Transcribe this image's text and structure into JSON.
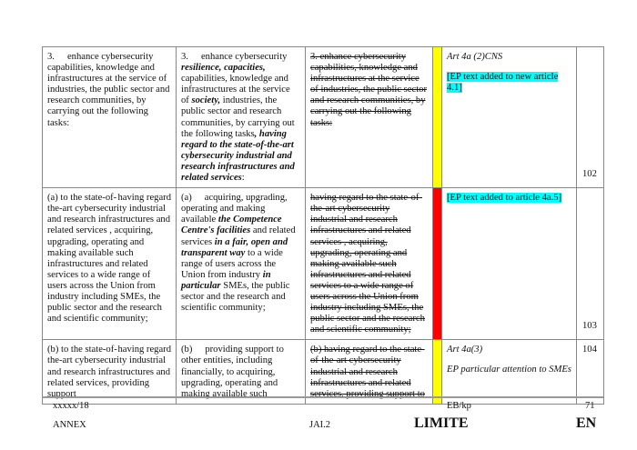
{
  "rows": [
    {
      "col1": [
        {
          "t": "3.",
          "s": ""
        },
        {
          "t": "SP",
          "s": "sp"
        },
        {
          "t": "enhance cybersecurity capabilities, knowledge and infrastructures at the service of industries, the public sector and research communities, by carrying out the following tasks:",
          "s": ""
        }
      ],
      "col2": [
        {
          "t": "3.",
          "s": ""
        },
        {
          "t": "SP",
          "s": "sp"
        },
        {
          "t": "enhance cybersecurity ",
          "s": ""
        },
        {
          "t": "resilience, capacities,",
          "s": "bi"
        },
        {
          "t": " capabilities, knowledge and infrastructures at the service of ",
          "s": ""
        },
        {
          "t": "society,",
          "s": "bi"
        },
        {
          "t": " industries, the public sector and research communities, by carrying out the following tasks",
          "s": ""
        },
        {
          "t": ", having regard to the state-of-the-art cybersecurity industrial and research infrastructures and related services",
          "s": "bi"
        },
        {
          "t": ":",
          "s": ""
        }
      ],
      "col3": [
        {
          "t": "3.      enhance cybersecurity capabilities, knowledge and infrastructures at the service of industries, the public sector and research communities, by carrying out the following tasks:",
          "s": "del"
        }
      ],
      "bar_color": "#ffff00",
      "note_ref": "Art 4a (2)CNS",
      "note_text": "[EP text added to new article 4.1]",
      "number": "102"
    },
    {
      "col1": [
        {
          "t": "(a)",
          "s": ""
        },
        {
          "t": "having regard",
          "s": "right"
        },
        {
          "t": " to the state-of-the-art cybersecurity industrial and research infrastructures and related services , acquiring, upgrading, operating and making available such infrastructures and related services to a wide range of users across the Union from industry including SMEs, the public sector and the research and scientific community;",
          "s": ""
        }
      ],
      "col2": [
        {
          "t": "(a)",
          "s": ""
        },
        {
          "t": "SP",
          "s": "sp"
        },
        {
          "t": "acquiring, upgrading, operating and making available ",
          "s": ""
        },
        {
          "t": "the Competence Centre's facilities",
          "s": "bi"
        },
        {
          "t": " and related services ",
          "s": ""
        },
        {
          "t": "in a fair, open and transparent way",
          "s": "bi"
        },
        {
          "t": " to a wide range of users across the Union from industry ",
          "s": ""
        },
        {
          "t": "in particular",
          "s": "bi"
        },
        {
          "t": " SMEs, the public sector and the research and scientific community;",
          "s": ""
        }
      ],
      "col3": [
        {
          "t": "having regard to the state-of-the-art cybersecurity industrial and research infrastructures and related services , acquiring, upgrading, operating and making available such infrastructures and related services to a wide range of users across the Union from industry including SMEs, the public sector and the research and scientific community;",
          "s": "del"
        }
      ],
      "bar_color": "#ff0000",
      "note_ref": "",
      "note_text": "[EP text added to article 4a.5]",
      "number": "103"
    },
    {
      "col1": [
        {
          "t": "(b)",
          "s": ""
        },
        {
          "t": "having regard",
          "s": "right"
        },
        {
          "t": " to the state-of-the-art cybersecurity industrial and research infrastructures and related services, providing support",
          "s": ""
        }
      ],
      "col2": [
        {
          "t": "(b)",
          "s": ""
        },
        {
          "t": "SP",
          "s": "sp"
        },
        {
          "t": "providing support to other entities, including financially, to acquiring, upgrading, operating and making available such",
          "s": ""
        }
      ],
      "col3": [
        {
          "t": "(b)     having regard to the state-of-the-art cybersecurity industrial and research infrastructures and related services, providing support to",
          "s": "del"
        }
      ],
      "bar_color": "#ffff00",
      "note_ref": "Art 4a(3)",
      "note_text": "EP particular attention to SMEs",
      "number": "104"
    }
  ],
  "footer": {
    "doc_ref": "xxxxx/18",
    "initials": "EB/kp",
    "page": "71",
    "annex": "ANNEX",
    "dept": "JAI.2",
    "classification": "LIMITE",
    "lang": "EN"
  }
}
